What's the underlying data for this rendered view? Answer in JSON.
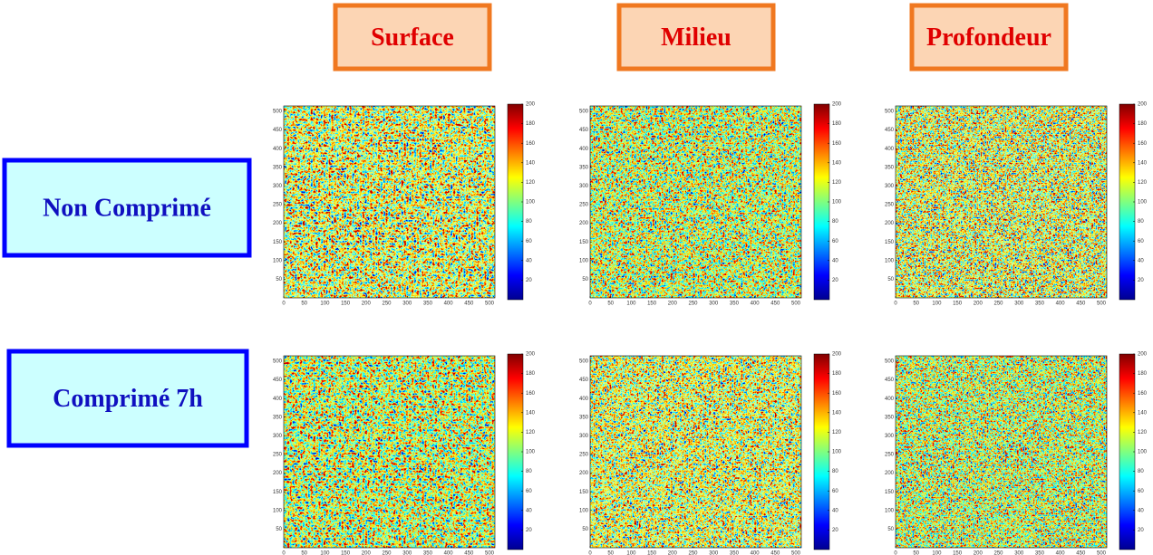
{
  "columns": [
    "Surface",
    "Milieu",
    "Profondeur"
  ],
  "rows": [
    "Non Comprimé",
    "Comprimé 7h"
  ],
  "axes": {
    "xticks": [
      0,
      50,
      100,
      150,
      200,
      250,
      300,
      350,
      400,
      450,
      500
    ],
    "yticks": [
      50,
      100,
      150,
      200,
      250,
      300,
      350,
      400,
      450,
      500
    ],
    "colorbar_ticks": [
      20,
      40,
      60,
      80,
      100,
      120,
      140,
      160,
      180,
      200
    ]
  }
}
